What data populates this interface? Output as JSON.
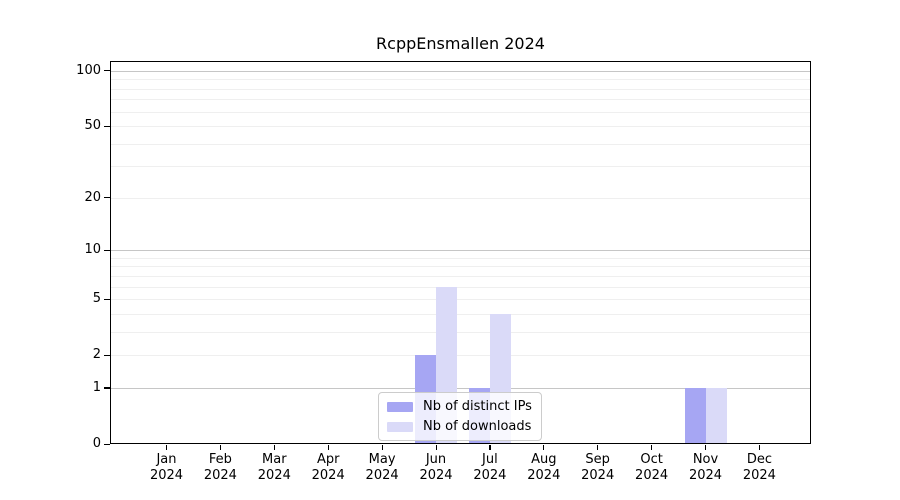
{
  "chart_data": {
    "type": "bar",
    "title": "RcppEnsmallen 2024",
    "categories": [
      "Jan",
      "Feb",
      "Mar",
      "Apr",
      "May",
      "Jun",
      "Jul",
      "Aug",
      "Sep",
      "Oct",
      "Nov",
      "Dec"
    ],
    "x_tick_year": "2024",
    "series": [
      {
        "name": "Nb of distinct IPs",
        "color": "#a6a6f3",
        "values": [
          0,
          0,
          0,
          0,
          0,
          2,
          1,
          0,
          0,
          0,
          1,
          0
        ]
      },
      {
        "name": "Nb of downloads",
        "color": "#dadaf8",
        "values": [
          0,
          0,
          0,
          0,
          0,
          6,
          4,
          0,
          0,
          0,
          1,
          0
        ]
      }
    ],
    "y_axis": {
      "scale": "log1p",
      "min": 0,
      "max": 113,
      "tick_values": [
        0,
        1,
        2,
        5,
        10,
        20,
        50,
        100
      ],
      "major_gridlines": [
        1,
        10,
        100
      ],
      "minor_gridlines": [
        2,
        3,
        4,
        5,
        6,
        7,
        8,
        9,
        20,
        30,
        40,
        50,
        60,
        70,
        80,
        90
      ]
    },
    "legend": {
      "position": "bottom-center"
    },
    "colors": {
      "bar_distinct_ips": "#a6a6f3",
      "bar_downloads": "#dadaf8",
      "grid_major": "#c6c6c6",
      "grid_minor": "#efefef",
      "axis": "#000000",
      "background": "#ffffff"
    }
  }
}
